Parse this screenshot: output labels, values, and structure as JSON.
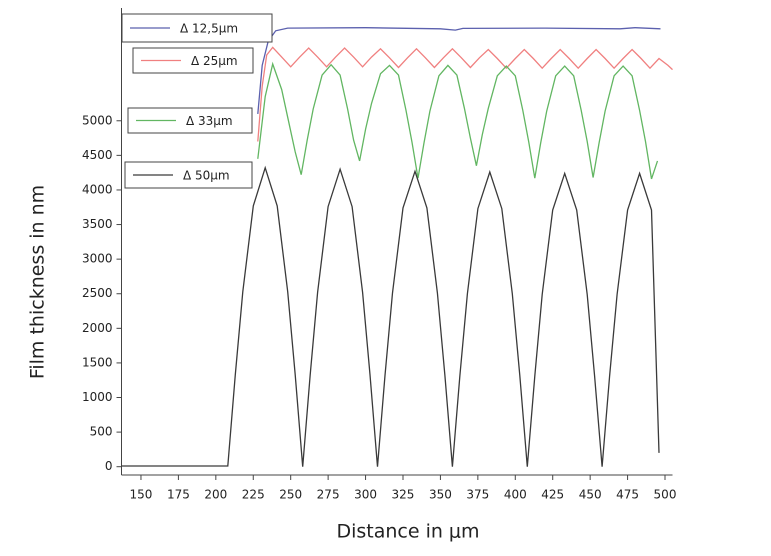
{
  "chart_data": {
    "type": "line",
    "xlabel": "Distance in μm",
    "ylabel": "Film thickness in nm",
    "xlim": [
      137,
      505
    ],
    "ylim": [
      -120,
      6630
    ],
    "xticks": [
      150,
      175,
      200,
      225,
      250,
      275,
      300,
      325,
      350,
      375,
      400,
      425,
      450,
      475,
      500
    ],
    "yticks": [
      0,
      500,
      1000,
      1500,
      2000,
      2500,
      3000,
      3500,
      4000,
      4500,
      5000
    ],
    "series": [
      {
        "name": "Δ 12,5μm",
        "color": "#5b60ae",
        "x": [
          228,
          231,
          235,
          240,
          248,
          300,
          350,
          360,
          365,
          420,
          470,
          480,
          497
        ],
        "values": [
          5100,
          5800,
          6150,
          6300,
          6340,
          6345,
          6330,
          6310,
          6335,
          6340,
          6330,
          6345,
          6330
        ]
      },
      {
        "name": "Δ 25μm",
        "color": "#f08080",
        "x": [
          228,
          231,
          234,
          238,
          244,
          250,
          256,
          262,
          268,
          274,
          280,
          286,
          292,
          298,
          304,
          310,
          316,
          322,
          328,
          334,
          340,
          346,
          352,
          358,
          364,
          370,
          376,
          382,
          388,
          394,
          400,
          406,
          412,
          418,
          424,
          430,
          436,
          442,
          448,
          454,
          460,
          466,
          472,
          478,
          484,
          490,
          496,
          502,
          505
        ],
        "values": [
          4700,
          5500,
          5950,
          6060,
          5920,
          5780,
          5920,
          6050,
          5920,
          5780,
          5920,
          6050,
          5920,
          5780,
          5920,
          6040,
          5910,
          5770,
          5910,
          6040,
          5910,
          5770,
          5910,
          6040,
          5910,
          5770,
          5910,
          6030,
          5900,
          5760,
          5900,
          6030,
          5900,
          5760,
          5900,
          6030,
          5900,
          5760,
          5900,
          6030,
          5900,
          5760,
          5900,
          6030,
          5900,
          5760,
          5900,
          5800,
          5740
        ]
      },
      {
        "name": "Δ 33μm",
        "color": "#62b662",
        "x": [
          228,
          233,
          238,
          244,
          249,
          253,
          257,
          261,
          265,
          271,
          277,
          283,
          288,
          292,
          296,
          300,
          304,
          310,
          316,
          322,
          327,
          331,
          335,
          339,
          343,
          349,
          355,
          361,
          366,
          370,
          374,
          378,
          382,
          388,
          394,
          400,
          405,
          409,
          413,
          417,
          421,
          427,
          433,
          439,
          444,
          448,
          452,
          456,
          460,
          466,
          472,
          478,
          483,
          487,
          491,
          495
        ],
        "values": [
          4450,
          5350,
          5820,
          5450,
          4950,
          4550,
          4220,
          4720,
          5170,
          5660,
          5810,
          5660,
          5170,
          4720,
          4420,
          4880,
          5250,
          5680,
          5800,
          5660,
          5150,
          4690,
          4170,
          4680,
          5140,
          5650,
          5800,
          5660,
          5180,
          4750,
          4350,
          4800,
          5180,
          5650,
          5790,
          5650,
          5150,
          4690,
          4170,
          4680,
          5140,
          5650,
          5790,
          5650,
          5150,
          4700,
          4180,
          4680,
          5140,
          5650,
          5790,
          5650,
          5150,
          4700,
          4160,
          4420
        ]
      },
      {
        "name": "Δ 50μm",
        "color": "#3a3a3a",
        "x": [
          137,
          208,
          213,
          218,
          225,
          233,
          241,
          248,
          253,
          258,
          263,
          268,
          275,
          283,
          291,
          298,
          303,
          308,
          313,
          318,
          325,
          333,
          341,
          348,
          353,
          358,
          363,
          368,
          375,
          383,
          391,
          398,
          403,
          408,
          413,
          418,
          425,
          433,
          441,
          448,
          453,
          458,
          463,
          468,
          475,
          483,
          491,
          496
        ],
        "values": [
          10,
          10,
          1330,
          2530,
          3770,
          4320,
          3770,
          2530,
          1330,
          0,
          1330,
          2520,
          3760,
          4300,
          3760,
          2520,
          1330,
          0,
          1320,
          2510,
          3740,
          4270,
          3740,
          2510,
          1320,
          0,
          1320,
          2500,
          3730,
          4260,
          3730,
          2500,
          1320,
          0,
          1310,
          2490,
          3710,
          4240,
          3710,
          2490,
          1310,
          0,
          1310,
          2490,
          3710,
          4240,
          3710,
          200
        ]
      }
    ]
  }
}
